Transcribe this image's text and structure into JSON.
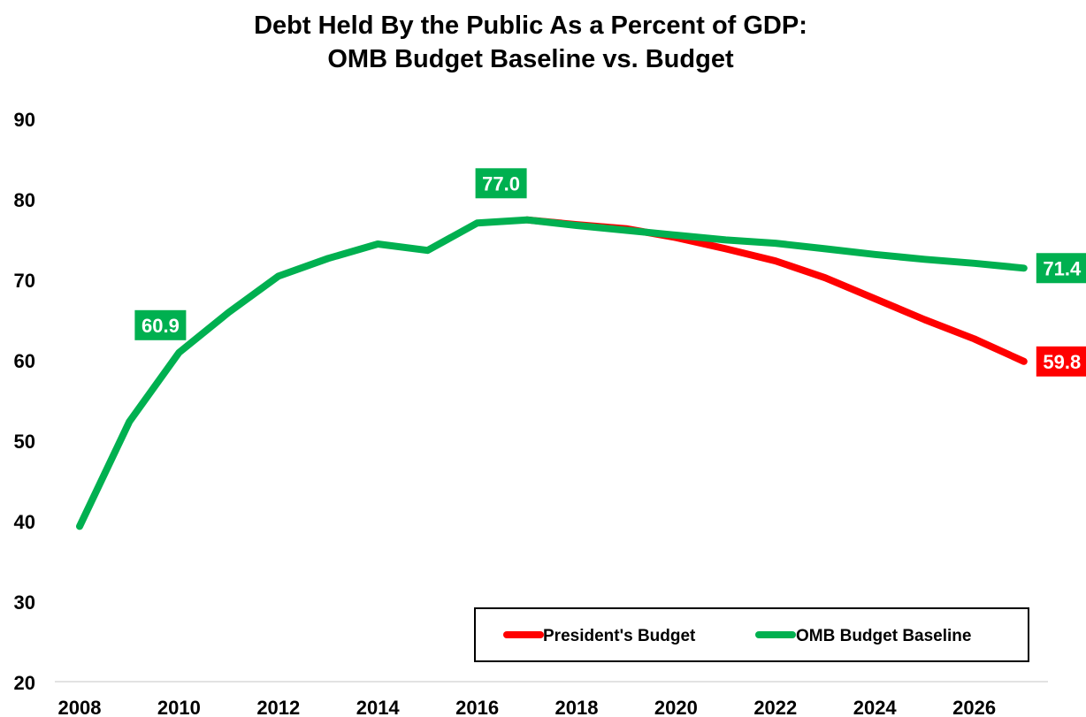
{
  "chart_data": {
    "type": "line",
    "title_line1": "Debt Held By the Public As a Percent of GDP:",
    "title_line2": "OMB Budget Baseline vs. Budget",
    "xlabel": "",
    "ylabel": "",
    "ylim": [
      20,
      90
    ],
    "xlim": [
      2008,
      2027
    ],
    "y_ticks": [
      20,
      30,
      40,
      50,
      60,
      70,
      80,
      90
    ],
    "x_ticks": [
      2008,
      2010,
      2012,
      2014,
      2016,
      2018,
      2020,
      2022,
      2024,
      2026
    ],
    "grid": false,
    "legend_placement": "bottom-right",
    "series": [
      {
        "name": "President's Budget",
        "color": "#ff0000",
        "x": [
          2017,
          2018,
          2019,
          2020,
          2021,
          2022,
          2023,
          2024,
          2025,
          2026,
          2027
        ],
        "values": [
          77.4,
          76.8,
          76.3,
          75.2,
          73.8,
          72.3,
          70.2,
          67.6,
          65.0,
          62.6,
          59.8
        ]
      },
      {
        "name": "OMB Budget Baseline",
        "color": "#00b050",
        "x": [
          2008,
          2009,
          2010,
          2011,
          2012,
          2013,
          2014,
          2015,
          2016,
          2017,
          2018,
          2019,
          2020,
          2021,
          2022,
          2023,
          2024,
          2025,
          2026,
          2027
        ],
        "values": [
          39.3,
          52.3,
          60.9,
          65.9,
          70.4,
          72.6,
          74.4,
          73.6,
          77.0,
          77.4,
          76.7,
          76.1,
          75.5,
          74.9,
          74.5,
          73.8,
          73.1,
          72.5,
          72.0,
          71.4
        ]
      }
    ],
    "annotations": [
      {
        "text": "60.9",
        "series": "OMB Budget Baseline",
        "x": 2010,
        "y": 60.9,
        "color": "#00b050"
      },
      {
        "text": "77.0",
        "series": "OMB Budget Baseline",
        "x": 2016,
        "y": 77.0,
        "color": "#00b050"
      },
      {
        "text": "71.4",
        "series": "OMB Budget Baseline",
        "x": 2027,
        "y": 71.4,
        "color": "#00b050"
      },
      {
        "text": "59.8",
        "series": "President's Budget",
        "x": 2027,
        "y": 59.8,
        "color": "#ff0000"
      }
    ]
  }
}
